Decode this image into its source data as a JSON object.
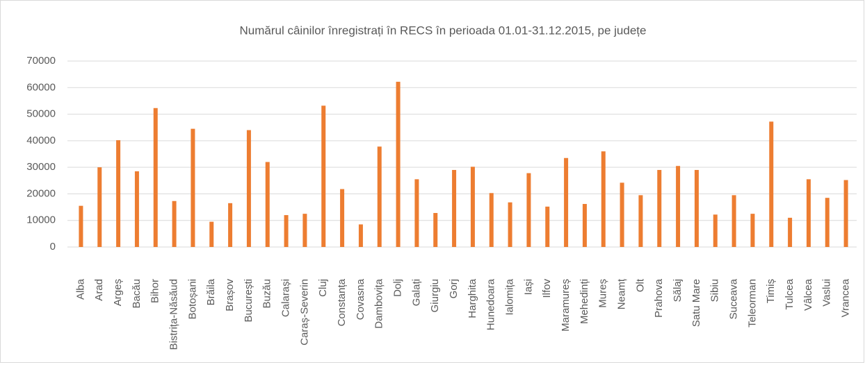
{
  "chart_data": {
    "type": "bar",
    "title": "Numărul câinilor înregistrați  în RECS în perioada 01.01-31.12.2015, pe județe",
    "categories": [
      "Alba",
      "Arad",
      "Argeș",
      "Bacău",
      "Bihor",
      "Bistrița-Năsăud",
      "Botoșani",
      "Brăila",
      "Brașov",
      "București",
      "Buzău",
      "Calarași",
      "Caraș-Severin",
      "Cluj",
      "Constanța",
      "Covasna",
      "Dambovița",
      "Dolj",
      "Galați",
      "Giurgiu",
      "Gorj",
      "Harghita",
      "Hunedoara",
      "Ialomița",
      "Iași",
      "Ilfov",
      "Maramureș",
      "Mehedinți",
      "Mureș",
      "Neamț",
      "Olt",
      "Prahova",
      "Sălaj",
      "Satu Mare",
      "Sibiu",
      "Suceava",
      "Teleorman",
      "Timiș",
      "Tulcea",
      "Vâlcea",
      "Vaslui",
      "Vrancea"
    ],
    "values": [
      15500,
      30000,
      40200,
      28500,
      52300,
      17300,
      44500,
      9500,
      16500,
      44000,
      32000,
      12000,
      12500,
      53200,
      21800,
      8500,
      37800,
      62200,
      25500,
      12800,
      29000,
      30200,
      20300,
      16800,
      27800,
      15200,
      33500,
      16200,
      36000,
      24200,
      19500,
      29000,
      30500,
      29000,
      12200,
      19500,
      12500,
      47200,
      11000,
      25500,
      18500,
      25200
    ],
    "color": "#ed7d31",
    "ylim": [
      0,
      70000
    ],
    "yticks": [
      0,
      10000,
      20000,
      30000,
      40000,
      50000,
      60000,
      70000
    ],
    "grid": true
  }
}
